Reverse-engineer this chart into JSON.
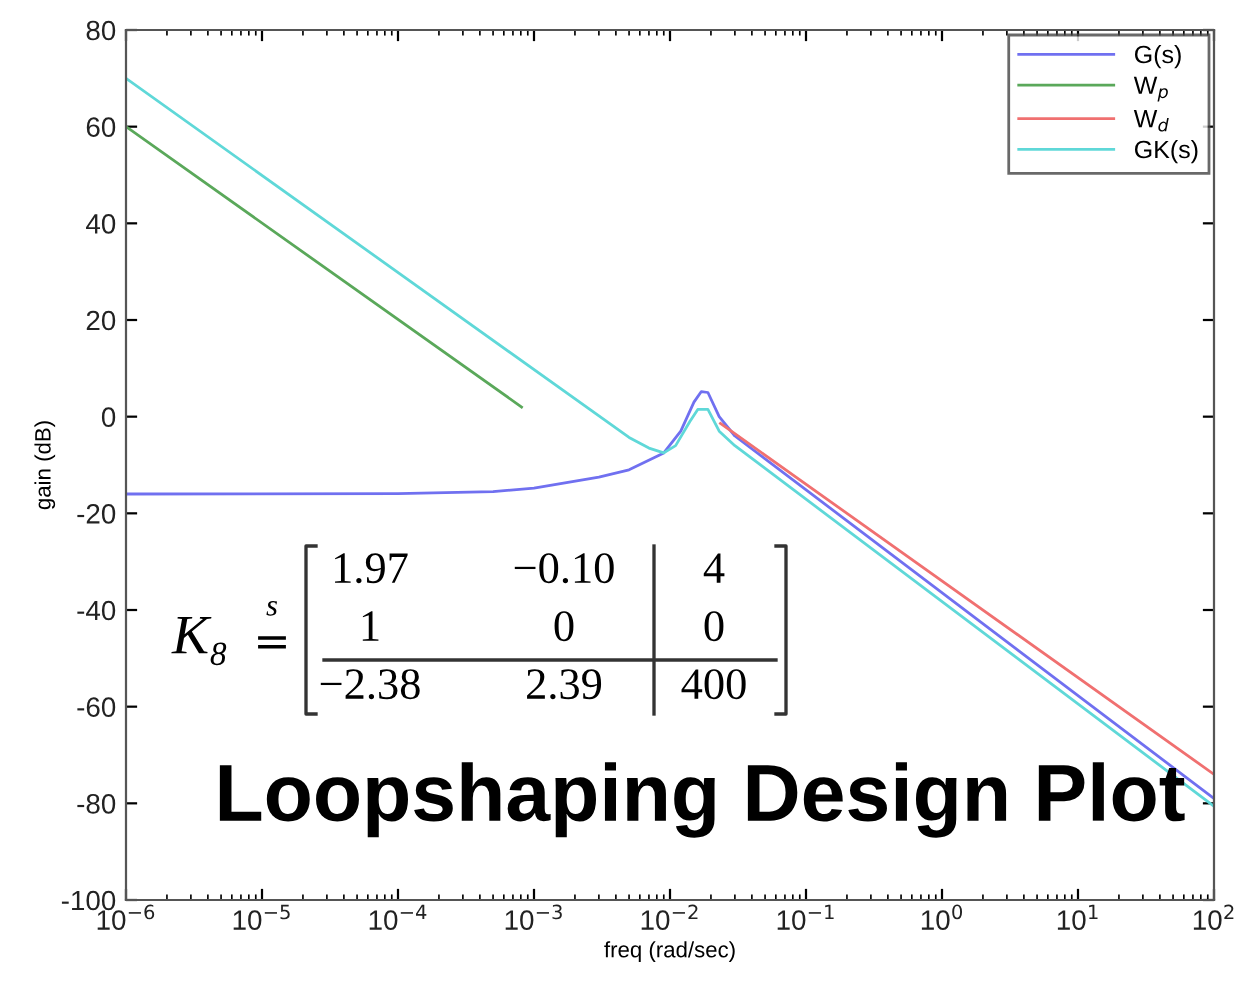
{
  "chart_data": {
    "type": "line",
    "title": "Loopshaping Design Plot",
    "xlabel": "freq (rad/sec)",
    "ylabel": "gain (dB)",
    "log": "x",
    "xlim": [
      1e-06,
      100
    ],
    "ylim": [
      -100,
      80
    ],
    "xticks": [
      {
        "value": 1e-06,
        "label": "10$^{−6}$"
      },
      {
        "value": 1e-05,
        "label": "10$^{−5}$"
      },
      {
        "value": 0.0001,
        "label": "10$^{−4}$"
      },
      {
        "value": 0.001,
        "label": "10$^{−3}$"
      },
      {
        "value": 0.01,
        "label": "10$^{−2}$"
      },
      {
        "value": 0.1,
        "label": "10$^{−1}$"
      },
      {
        "value": 1,
        "label": "10$^{0}$"
      },
      {
        "value": 10,
        "label": "10$^{1}$"
      },
      {
        "value": 100,
        "label": "10$^{2}$"
      }
    ],
    "yticks": [
      -100,
      -80,
      -60,
      -40,
      -20,
      0,
      20,
      40,
      60,
      80
    ],
    "grid": false,
    "legend": "top right",
    "marker": "none",
    "line_style": "solid",
    "series": [
      {
        "name": "G(s)",
        "color": "#7070f0",
        "x": [
          1e-06,
          0.0001,
          0.0005,
          0.001,
          0.003,
          0.005,
          0.009,
          0.012,
          0.015,
          0.017,
          0.019,
          0.023,
          0.03,
          100
        ],
        "values": [
          -16,
          -15.9,
          -15.5,
          -14.8,
          -12.5,
          -11,
          -7.5,
          -3,
          3,
          5.2,
          5,
          0,
          -4,
          -79
        ]
      },
      {
        "name": "W$_{p}$",
        "color": "#5aa85a",
        "x": [
          1e-06,
          0.00081
        ],
        "values": [
          60,
          2
        ]
      },
      {
        "name": "W$_{d}$",
        "color": "#f07070",
        "x": [
          0.0235,
          100
        ],
        "values": [
          -1.4,
          -74
        ]
      },
      {
        "name": "GK(s)",
        "color": "#5fd8d8",
        "x": [
          1e-06,
          0.005,
          0.007,
          0.009,
          0.011,
          0.014,
          0.016,
          0.019,
          0.023,
          0.03,
          100
        ],
        "values": [
          70,
          -4.3,
          -6.5,
          -7.5,
          -6,
          -1,
          1.5,
          1.5,
          -3,
          -6,
          -80.6
        ]
      }
    ],
    "annotations": [
      "K₈",
      "s",
      "=",
      "1.97",
      "−0.10",
      "4",
      "1",
      "0",
      "0",
      "−2.38",
      "2.39",
      "400"
    ]
  }
}
